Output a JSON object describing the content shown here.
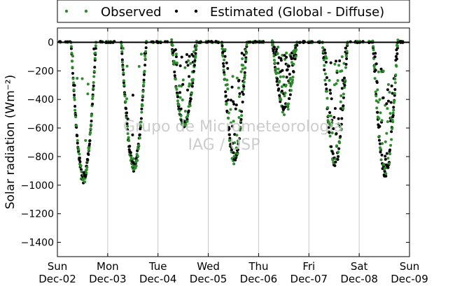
{
  "chart_data": {
    "type": "scatter",
    "ylabel": "Solar radiation (Wm⁻²)",
    "xlabel": "",
    "ylim": [
      -1500,
      100
    ],
    "yticks": [
      0,
      -200,
      -400,
      -600,
      -800,
      -1000,
      -1200,
      -1400
    ],
    "xticks": [
      {
        "day": "Sun",
        "date": "Dec-02"
      },
      {
        "day": "Mon",
        "date": "Dec-03"
      },
      {
        "day": "Tue",
        "date": "Dec-04"
      },
      {
        "day": "Wed",
        "date": "Dec-05"
      },
      {
        "day": "Thu",
        "date": "Dec-06"
      },
      {
        "day": "Fri",
        "date": "Dec-07"
      },
      {
        "day": "Sat",
        "date": "Dec-08"
      },
      {
        "day": "Sun",
        "date": "Dec-09"
      }
    ],
    "x_range_days": [
      0,
      7
    ],
    "grid": "vertical",
    "legend_position": "top",
    "series": [
      {
        "name": "Observed",
        "color": "#2e8b2e",
        "marker": "dot"
      },
      {
        "name": "Estimated (Global - Diffuse)",
        "color": "#000000",
        "marker": "dot"
      }
    ],
    "daily_profiles": [
      {
        "date": "Dec-02",
        "peak": -990,
        "noise": 0.08
      },
      {
        "date": "Dec-03",
        "peak": -905,
        "noise": 0.12
      },
      {
        "date": "Dec-04",
        "peak": -600,
        "noise": 0.45
      },
      {
        "date": "Dec-05",
        "peak": -840,
        "noise": 0.55
      },
      {
        "date": "Dec-06",
        "peak": -500,
        "noise": 0.8
      },
      {
        "date": "Dec-07",
        "peak": -870,
        "noise": 0.6
      },
      {
        "date": "Dec-08",
        "peak": -950,
        "noise": 0.55
      }
    ],
    "watermark_line1": "Grupo de Micrometeorologia",
    "watermark_line2": "IAG / USP"
  }
}
